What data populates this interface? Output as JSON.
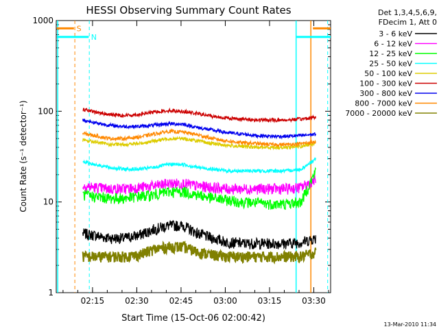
{
  "chart_data": {
    "type": "line",
    "title": "HESSI Observing Summary Count Rates",
    "xlabel": "Start Time (15-Oct-06 02:00:42)",
    "ylabel": "Count Rate (s⁻¹ detector⁻¹)",
    "xlim_minutes": [
      2.0,
      95.0
    ],
    "x_tick_labels": [
      "02:15",
      "02:30",
      "02:45",
      "03:00",
      "03:15",
      "03:30"
    ],
    "x_tick_minutes": [
      14.3,
      29.3,
      44.3,
      59.3,
      74.3,
      89.3
    ],
    "y_scale": "log",
    "ylim": [
      1,
      1000
    ],
    "y_tick_labels": [
      "1",
      "10",
      "100",
      "1000"
    ],
    "y_tick_values": [
      1,
      10,
      100,
      1000
    ],
    "legend_header": [
      "Det 1,3,4,5,6,9,",
      "FDecim 1, Att 0"
    ],
    "legend_position": "right",
    "footer_date": "13-Mar-2010 11:34",
    "x_sample_minutes": [
      11,
      15,
      20,
      25,
      30,
      35,
      40,
      45,
      50,
      55,
      60,
      65,
      70,
      75,
      80,
      85,
      90
    ],
    "series": [
      {
        "name": "3 - 6 keV",
        "color": "#000000",
        "values": [
          4.5,
          4.3,
          4.0,
          4.0,
          4.3,
          5.0,
          5.5,
          5.5,
          4.5,
          4.0,
          3.6,
          3.5,
          3.5,
          3.5,
          3.5,
          3.6,
          4.0
        ]
      },
      {
        "name": "6 - 12 keV",
        "color": "#ff00ff",
        "values": [
          15,
          14.5,
          14,
          14,
          14.5,
          15,
          16,
          16,
          15,
          14.5,
          14,
          14,
          14,
          14,
          14,
          14.5,
          18
        ]
      },
      {
        "name": "12 - 25 keV",
        "color": "#00ff00",
        "values": [
          12,
          11.5,
          11,
          11,
          11.5,
          12,
          13,
          13,
          12,
          11,
          10.5,
          10,
          9.8,
          9.5,
          9.5,
          10,
          22
        ]
      },
      {
        "name": "25 - 50 keV",
        "color": "#00ffff",
        "values": [
          28,
          26,
          24,
          23,
          23,
          24,
          26,
          26,
          24,
          23,
          22,
          22,
          22,
          22,
          22,
          23,
          30
        ]
      },
      {
        "name": "50 - 100 keV",
        "color": "#ddcc00",
        "values": [
          48,
          46,
          43,
          43,
          44,
          47,
          50,
          50,
          47,
          44,
          42,
          41,
          40,
          40,
          40,
          41,
          45
        ]
      },
      {
        "name": "100 - 300 keV",
        "color": "#cc0000",
        "values": [
          105,
          98,
          92,
          90,
          92,
          98,
          102,
          100,
          94,
          88,
          84,
          82,
          80,
          80,
          80,
          82,
          86
        ]
      },
      {
        "name": "300 - 800 keV",
        "color": "#0000ee",
        "values": [
          80,
          75,
          70,
          68,
          68,
          70,
          73,
          72,
          66,
          62,
          58,
          56,
          54,
          53,
          53,
          54,
          56
        ]
      },
      {
        "name": "800 - 7000 keV",
        "color": "#ff8800",
        "values": [
          57,
          54,
          50,
          50,
          52,
          56,
          60,
          59,
          55,
          50,
          47,
          45,
          44,
          43,
          43,
          44,
          46
        ]
      },
      {
        "name": "7000 - 20000 keV",
        "color": "#808000",
        "values": [
          2.5,
          2.5,
          2.5,
          2.5,
          2.6,
          3.0,
          3.2,
          3.2,
          2.8,
          2.6,
          2.5,
          2.5,
          2.5,
          2.5,
          2.5,
          2.5,
          2.8
        ]
      }
    ],
    "flags": [
      {
        "label": "S",
        "color": "#ff8800"
      },
      {
        "label": "N",
        "color": "#00ffff"
      }
    ]
  }
}
